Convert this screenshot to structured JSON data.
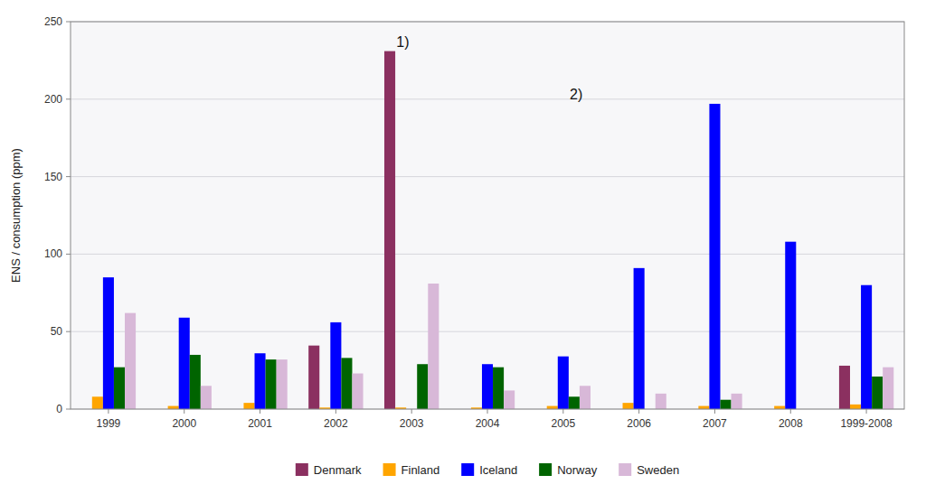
{
  "chart_data": {
    "type": "bar",
    "categories": [
      "1999",
      "2000",
      "2001",
      "2002",
      "2003",
      "2004",
      "2005",
      "2006",
      "2007",
      "2008",
      "1999-2008"
    ],
    "series": [
      {
        "name": "Denmark",
        "color": "#8B3060",
        "values": [
          0,
          0,
          0,
          41,
          231,
          0,
          0,
          0,
          0,
          0,
          28
        ]
      },
      {
        "name": "Finland",
        "color": "#FFA500",
        "values": [
          8,
          2,
          4,
          1,
          1,
          1,
          2,
          4,
          2,
          2,
          3
        ]
      },
      {
        "name": "Iceland",
        "color": "#0000FF",
        "values": [
          85,
          59,
          36,
          56,
          0,
          29,
          34,
          91,
          197,
          108,
          80
        ]
      },
      {
        "name": "Norway",
        "color": "#006400",
        "values": [
          27,
          35,
          32,
          33,
          29,
          27,
          8,
          0,
          6,
          0,
          21
        ]
      },
      {
        "name": "Sweden",
        "color": "#D8B8D8",
        "values": [
          62,
          15,
          32,
          23,
          81,
          12,
          15,
          10,
          10,
          0,
          27
        ]
      }
    ],
    "ylabel": "ENS / consumption (ppm)",
    "ylim": [
      0,
      250
    ],
    "yticks": [
      0,
      50,
      100,
      150,
      200,
      250
    ],
    "grid": true,
    "legend": "bottom",
    "annotations": [
      {
        "text": "1)",
        "series": "Denmark",
        "category": "2003",
        "y": 232
      },
      {
        "text": "2)",
        "series": "Iceland",
        "category": "2005",
        "y": 198
      }
    ]
  }
}
